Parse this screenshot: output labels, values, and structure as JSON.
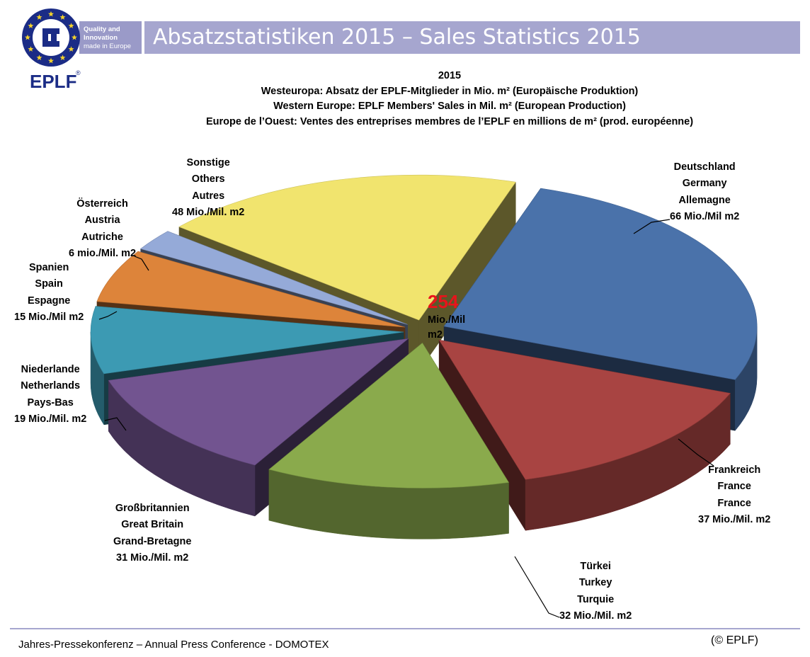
{
  "header": {
    "title": "Absatzstatistiken 2015 – Sales Statistics 2015",
    "logo_badge_text": [
      "Quality and",
      "Innovation",
      "made in Europe"
    ],
    "logo_brand": "EPLF",
    "logo_reg": "®"
  },
  "chart_heading": {
    "year": "2015",
    "line_de": "Westeuropa: Absatz der EPLF-Mitglieder in Mio. m² (Europäische Produktion)",
    "line_en": "Western Europe: EPLF Members' Sales in Mil. m² (European Production)",
    "line_fr": "Europe de l’Ouest: Ventes des entreprises membres de l’EPLF en millions de m² (prod. européenne)"
  },
  "total": {
    "value": "254",
    "unit": "Mio./Mil m2"
  },
  "chart_data": {
    "type": "pie",
    "style": "3d-exploded",
    "total": 254,
    "unit": "Mio. m2",
    "slices": [
      {
        "de": "Deutschland",
        "en": "Germany",
        "fr": "Allemagne",
        "value": 66,
        "value_label": "66 Mio./Mil m2",
        "color": "#4a72aa"
      },
      {
        "de": "Frankreich",
        "en": "France",
        "fr": "France",
        "value": 37,
        "value_label": "37 Mio./Mil. m2",
        "color": "#a84442"
      },
      {
        "de": "Türkei",
        "en": "Turkey",
        "fr": "Turquie",
        "value": 32,
        "value_label": "32 Mio./Mil. m2",
        "color": "#8aaa4c"
      },
      {
        "de": "Großbritannien",
        "en": "Great Britain",
        "fr": "Grand-Bretagne",
        "value": 31,
        "value_label": "31 Mio./Mil. m2",
        "color": "#725490"
      },
      {
        "de": "Niederlande",
        "en": "Netherlands",
        "fr": "Pays-Bas",
        "value": 19,
        "value_label": "19 Mio./Mil. m2",
        "color": "#3c9ab3"
      },
      {
        "de": "Spanien",
        "en": "Spain",
        "fr": "Espagne",
        "value": 15,
        "value_label": "15 Mio./Mil m2",
        "color": "#dd843a"
      },
      {
        "de": "Österreich",
        "en": "Austria",
        "fr": "Autriche",
        "value": 6,
        "value_label": "6 mio./Mil. m2",
        "color": "#95aad8"
      },
      {
        "de": "Sonstige",
        "en": "Others",
        "fr": "Autres",
        "value": 48,
        "value_label": "48 Mio./Mil. m2",
        "color": "#f1e46e"
      }
    ]
  },
  "footer": {
    "text": "Jahres-Pressekonferenz – Annual Press Conference - DOMOTEX",
    "copyright": "(© EPLF)",
    "rule_color": "#a6a6cf"
  }
}
